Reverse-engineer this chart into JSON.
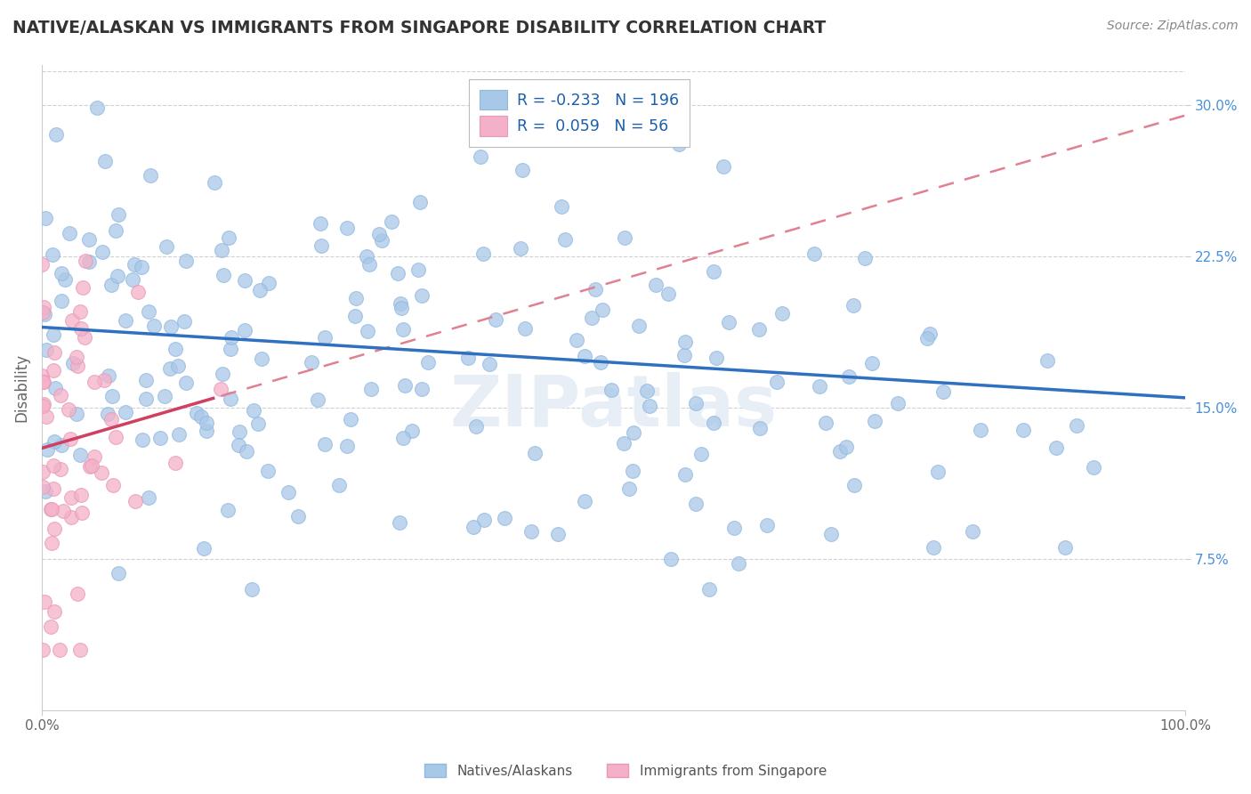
{
  "title": "NATIVE/ALASKAN VS IMMIGRANTS FROM SINGAPORE DISABILITY CORRELATION CHART",
  "source": "Source: ZipAtlas.com",
  "R_blue": -0.233,
  "N_blue": 196,
  "R_pink": 0.059,
  "N_pink": 56,
  "ylabel": "Disability",
  "yticks": [
    0.075,
    0.15,
    0.225,
    0.3
  ],
  "ytick_labels": [
    "7.5%",
    "15.0%",
    "22.5%",
    "30.0%"
  ],
  "xlim": [
    0.0,
    1.0
  ],
  "ylim": [
    0.0,
    0.32
  ],
  "blue_color": "#a8c8e8",
  "blue_edge_color": "#90b8e0",
  "pink_color": "#f4b0c8",
  "pink_edge_color": "#e898b8",
  "blue_line_color": "#3070c0",
  "pink_line_color": "#d04060",
  "pink_dash_color": "#e08090",
  "legend_label_blue": "Natives/Alaskans",
  "legend_label_pink": "Immigrants from Singapore",
  "background_color": "#ffffff",
  "grid_color": "#cccccc",
  "title_color": "#333333",
  "source_color": "#888888",
  "ylabel_color": "#666666",
  "xtick_color": "#666666",
  "ytick_color": "#4a90d9",
  "watermark_color": "#e8eef5",
  "blue_seed": 42,
  "pink_seed": 99
}
